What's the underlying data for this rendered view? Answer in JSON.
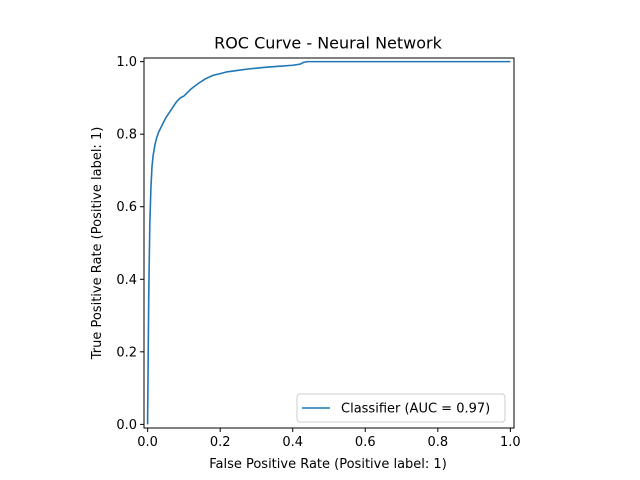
{
  "chart_data": {
    "type": "line",
    "title": "ROC Curve - Neural Network",
    "xlabel": "False Positive Rate (Positive label: 1)",
    "ylabel": "True Positive Rate (Positive label: 1)",
    "xlim": [
      -0.01,
      1.01
    ],
    "ylim": [
      -0.01,
      1.01
    ],
    "xticks": [
      0.0,
      0.2,
      0.4,
      0.6,
      0.8,
      1.0
    ],
    "yticks": [
      0.0,
      0.2,
      0.4,
      0.6,
      0.8,
      1.0
    ],
    "xtick_labels": [
      "0.0",
      "0.2",
      "0.4",
      "0.6",
      "0.8",
      "1.0"
    ],
    "ytick_labels": [
      "0.0",
      "0.2",
      "0.4",
      "0.6",
      "0.8",
      "1.0"
    ],
    "grid": false,
    "legend_position": "lower-right",
    "series": [
      {
        "name": "Classifier (AUC = 0.97)",
        "color": "#1f77b4",
        "x": [
          0.0,
          0.0,
          0.003,
          0.006,
          0.009,
          0.012,
          0.015,
          0.02,
          0.025,
          0.03,
          0.04,
          0.05,
          0.06,
          0.07,
          0.08,
          0.09,
          0.1,
          0.12,
          0.14,
          0.16,
          0.18,
          0.2,
          0.22,
          0.25,
          0.28,
          0.32,
          0.36,
          0.4,
          0.42,
          0.43,
          0.44,
          0.5,
          0.6,
          0.7,
          0.8,
          0.9,
          1.0
        ],
        "y": [
          0.0,
          0.02,
          0.35,
          0.55,
          0.65,
          0.71,
          0.74,
          0.77,
          0.79,
          0.805,
          0.825,
          0.845,
          0.86,
          0.875,
          0.89,
          0.9,
          0.905,
          0.925,
          0.94,
          0.953,
          0.962,
          0.967,
          0.972,
          0.976,
          0.98,
          0.984,
          0.987,
          0.99,
          0.993,
          0.998,
          1.0,
          1.0,
          1.0,
          1.0,
          1.0,
          1.0,
          1.0
        ]
      }
    ]
  }
}
